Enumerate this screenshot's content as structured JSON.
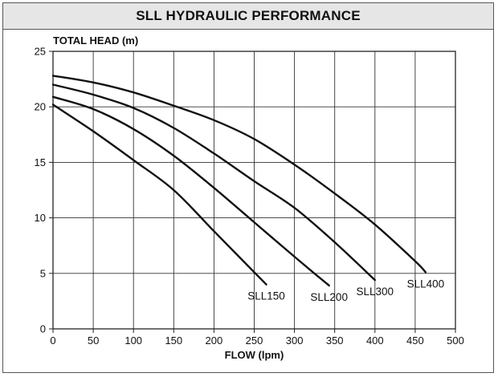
{
  "chart_data": {
    "type": "line",
    "title": "SLL HYDRAULIC PERFORMANCE",
    "xlabel": "FLOW (lpm)",
    "ylabel": "TOTAL HEAD (m)",
    "xlim": [
      0,
      500
    ],
    "ylim": [
      0,
      25
    ],
    "xticks": [
      0,
      50,
      100,
      150,
      200,
      250,
      300,
      350,
      400,
      450,
      500
    ],
    "yticks": [
      0,
      5,
      10,
      15,
      20,
      25
    ],
    "grid": true,
    "series": [
      {
        "name": "SLL150",
        "x": [
          0,
          50,
          100,
          150,
          200,
          250,
          265
        ],
        "y": [
          20.2,
          17.8,
          15.2,
          12.5,
          8.8,
          5.1,
          4.0
        ]
      },
      {
        "name": "SLL200",
        "x": [
          0,
          50,
          100,
          150,
          200,
          250,
          300,
          343
        ],
        "y": [
          20.9,
          19.8,
          18.0,
          15.6,
          12.7,
          9.6,
          6.5,
          3.9
        ]
      },
      {
        "name": "SLL300",
        "x": [
          0,
          50,
          100,
          150,
          200,
          250,
          300,
          350,
          400
        ],
        "y": [
          22.0,
          21.1,
          19.9,
          18.1,
          15.8,
          13.3,
          10.9,
          7.8,
          4.4
        ]
      },
      {
        "name": "SLL400",
        "x": [
          0,
          50,
          100,
          150,
          200,
          250,
          300,
          350,
          400,
          450,
          463
        ],
        "y": [
          22.8,
          22.2,
          21.3,
          20.1,
          18.8,
          17.1,
          14.8,
          12.2,
          9.4,
          6.1,
          5.1
        ]
      }
    ]
  }
}
